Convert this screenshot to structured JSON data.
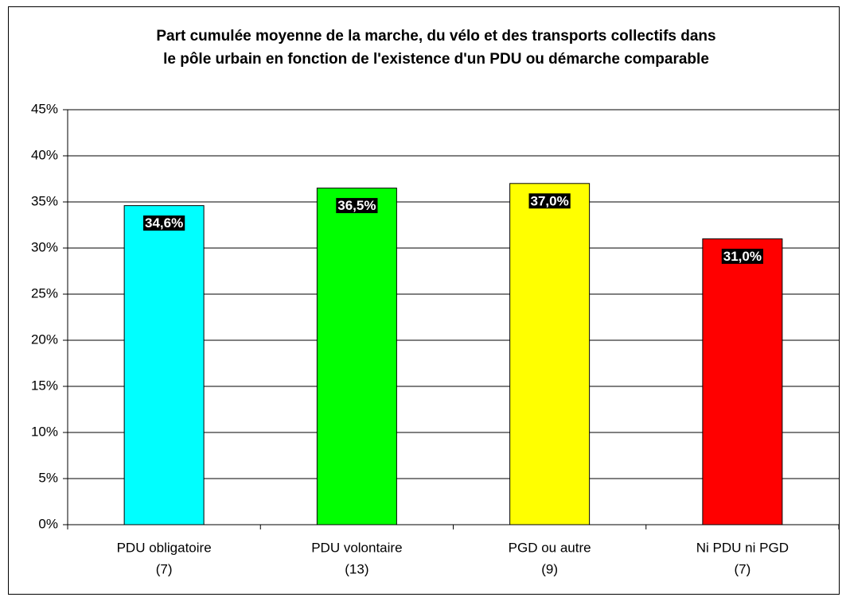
{
  "chart_data": {
    "type": "bar",
    "title": [
      "Part cumulée moyenne de la marche, du vélo et des transports collectifs dans",
      "le pôle urbain en fonction de l'existence d'un PDU ou démarche comparable"
    ],
    "categories": [
      [
        "PDU obligatoire",
        "(7)"
      ],
      [
        "PDU volontaire",
        "(13)"
      ],
      [
        "PGD ou autre",
        "(9)"
      ],
      [
        "Ni PDU ni PGD",
        "(7)"
      ]
    ],
    "values": [
      34.6,
      36.5,
      37.0,
      31.0
    ],
    "value_labels": [
      "34,6%",
      "36,5%",
      "37,0%",
      "31,0%"
    ],
    "colors": [
      "#00ffff",
      "#00ff00",
      "#ffff00",
      "#ff0000"
    ],
    "ylim": [
      0,
      45
    ],
    "yticks": [
      {
        "value": 0,
        "label": "0%"
      },
      {
        "value": 5,
        "label": "5%"
      },
      {
        "value": 10,
        "label": "10%"
      },
      {
        "value": 15,
        "label": "15%"
      },
      {
        "value": 20,
        "label": "20%"
      },
      {
        "value": 25,
        "label": "25%"
      },
      {
        "value": 30,
        "label": "30%"
      },
      {
        "value": 35,
        "label": "35%"
      },
      {
        "value": 40,
        "label": "40%"
      },
      {
        "value": 45,
        "label": "45%"
      }
    ],
    "grid": true
  }
}
